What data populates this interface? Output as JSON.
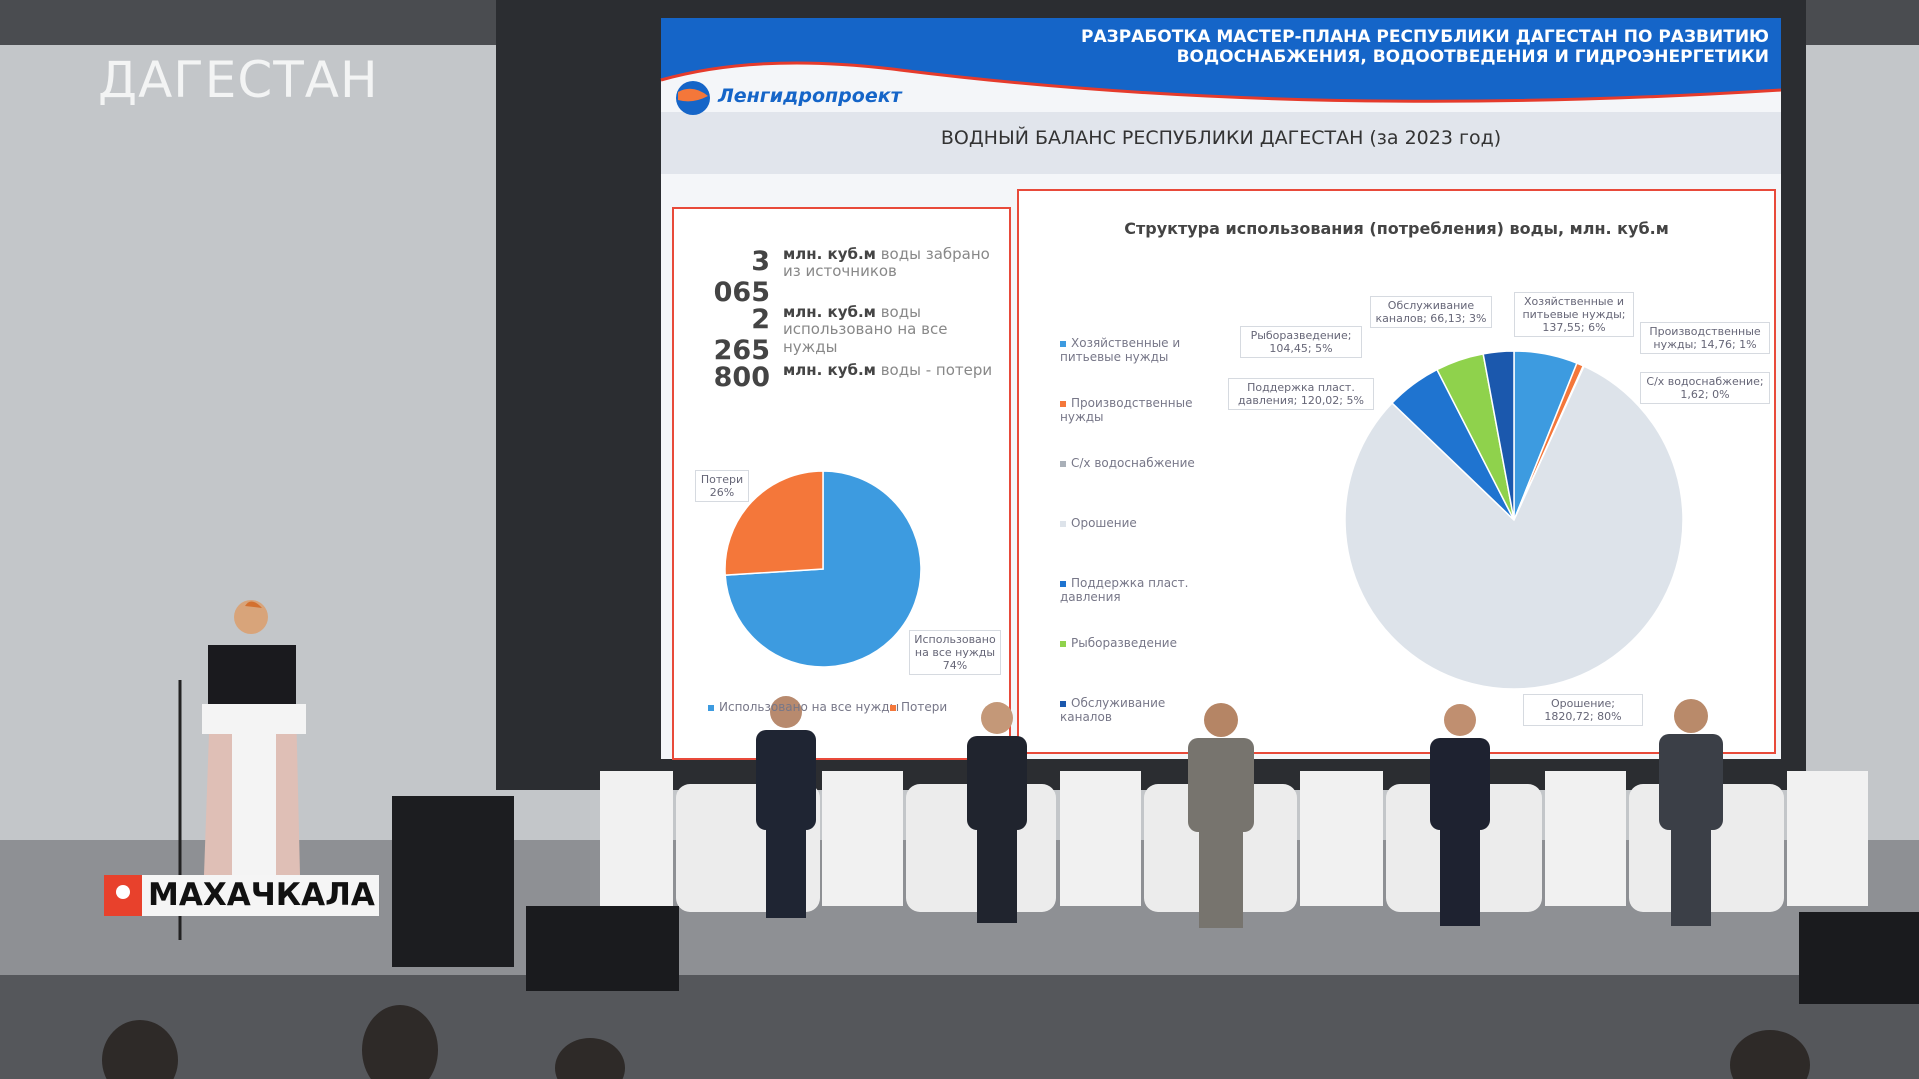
{
  "broadcast": {
    "logo": "ДАГЕСТАН",
    "location": "МАХАЧКАЛА"
  },
  "slide": {
    "header": {
      "title_line1": "РАЗРАБОТКА МАСТЕР-ПЛАНА РЕСПУБЛИКИ ДАГЕСТАН ПО РАЗВИТИЮ",
      "title_line2": "ВОДОСНАБЖЕНИЯ, ВОДООТВЕДЕНИЯ И ГИДРОЭНЕРГЕТИКИ",
      "company": "Ленгидропроект"
    },
    "subtitle": "ВОДНЫЙ БАЛАНС РЕСПУБЛИКИ ДАГЕСТАН (за 2023 год)",
    "stats": [
      {
        "value": "3 065",
        "unit": "млн. куб.м",
        "text": "воды забрано из источников"
      },
      {
        "value": "2 265",
        "unit": "млн. куб.м",
        "text": "воды использовано на все нужды"
      },
      {
        "value": "800",
        "unit": "млн. куб.м",
        "text": "воды - потери"
      }
    ],
    "balance_pie": {
      "type": "pie",
      "categories": [
        "Использовано на все нужды",
        "Потери"
      ],
      "values": [
        74,
        26
      ],
      "labels": [
        "Использовано на все нужды 74%",
        "Потери 26%"
      ],
      "colors": [
        "#3d9be0",
        "#f4773a"
      ]
    },
    "usage_pie": {
      "type": "pie",
      "title": "Структура использования (потребления) воды, млн. куб.м",
      "categories": [
        "Хозяйственные и питьевые нужды",
        "Производственные нужды",
        "С/х водоснабжение",
        "Орошение",
        "Поддержка пласт. давления",
        "Рыборазведение",
        "Обслуживание каналов"
      ],
      "values": [
        137.55,
        14.76,
        1.62,
        1820.72,
        120.02,
        104.45,
        66.13
      ],
      "labels": [
        "Хозяйственные и питьевые нужды; 137,55; 6%",
        "Производственные нужды; 14,76; 1%",
        "С/х водоснабжение; 1,62; 0%",
        "Орошение; 1820,72; 80%",
        "Поддержка пласт. давления; 120,02; 5%",
        "Рыборазведение; 104,45; 5%",
        "Обслуживание каналов; 66,13; 3%"
      ],
      "colors": [
        "#3d9be0",
        "#f4773a",
        "#a9b0b8",
        "#dde3ea",
        "#1f74d0",
        "#8fd24c",
        "#1b58ad"
      ]
    }
  }
}
